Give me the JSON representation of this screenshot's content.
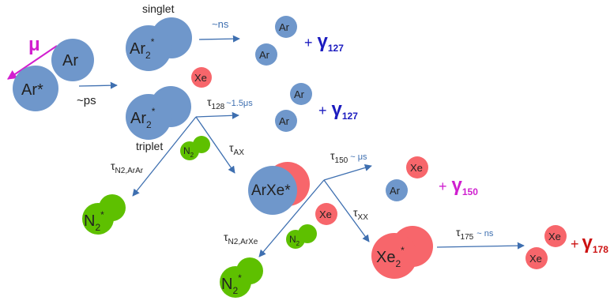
{
  "colors": {
    "argon": "#6f97cb",
    "xenon": "#f7666b",
    "nitrogen": "#5ec000",
    "arrow": "#3e6fb0",
    "muon": "#d21fcf",
    "gamma127": "#1b1bbf",
    "gamma150": "#cf1fcf",
    "gamma178": "#cc1111",
    "text": "#222222",
    "muted": "#555555"
  },
  "labels": {
    "mu": "μ",
    "ar": "Ar",
    "ar_excited": "Ar*",
    "ps": "~ps",
    "singlet": "singlet",
    "triplet": "triplet",
    "ns": "~ns",
    "ar2": "Ar",
    "xe": "Xe",
    "tau": "τ",
    "sub_128": "128",
    "tau128_time": "~1.5μs",
    "sub_ax": "AX",
    "sub_n2arar": "N2,ArAr",
    "n2": "N",
    "arxe": "ArXe*",
    "sub_150": "150",
    "tau150_time": "~ μs",
    "sub_xx": "XX",
    "sub_n2arxe": "N2,ArXe",
    "xe2": "Xe",
    "sub_175": "175",
    "tau175_time": "~ ns",
    "sub_2": "2",
    "star": "*",
    "plus": "+",
    "gamma": "γ",
    "g127": "127",
    "g150": "150",
    "g178": "178"
  }
}
